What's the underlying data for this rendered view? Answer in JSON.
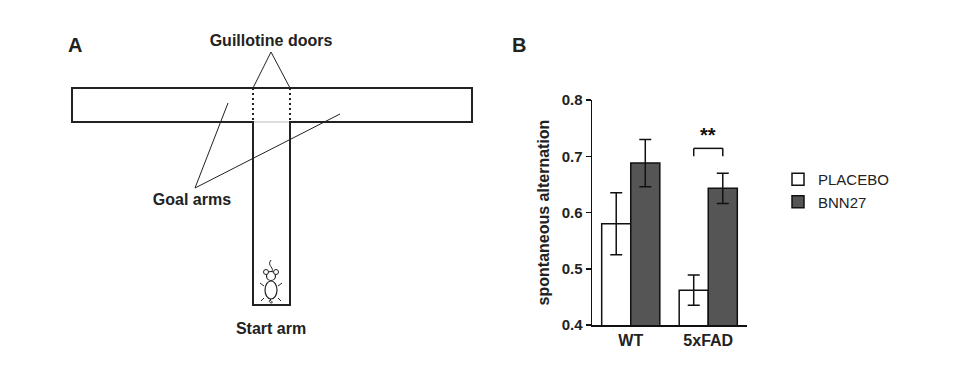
{
  "diagram": {
    "panel_label": "A",
    "doors": "Guillotine doors",
    "goal_arms": "Goal arms",
    "start_arm": "Start arm"
  },
  "chart_data": {
    "type": "bar",
    "panel_label": "B",
    "y_label": "spontaneous alternation",
    "categories": [
      "WT",
      "5xFAD"
    ],
    "series": [
      {
        "name": "PLACEBO",
        "color": "#ffffff",
        "values": [
          0.58,
          0.462
        ],
        "errors": [
          0.055,
          0.027
        ]
      },
      {
        "name": "BNN27",
        "color": "#555555",
        "values": [
          0.688,
          0.643
        ],
        "errors": [
          0.042,
          0.027
        ]
      }
    ],
    "ylim": [
      0.4,
      0.8
    ],
    "yticks": [
      0.4,
      0.5,
      0.6,
      0.7,
      0.8
    ],
    "grid": false,
    "legend": "right",
    "annotations": [
      {
        "text": "**",
        "category": "5xFAD"
      }
    ]
  }
}
